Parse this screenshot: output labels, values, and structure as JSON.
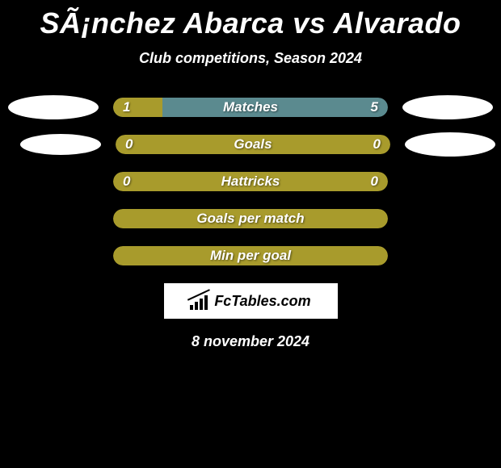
{
  "title": "SÃ¡nchez Abarca vs Alvarado",
  "subtitle": "Club competitions, Season 2024",
  "date": "8 november 2024",
  "logo_text": "FcTables.com",
  "colors": {
    "background": "#000000",
    "bar_fill": "#a89b2c",
    "bar_alt": "#5b8a8f",
    "ellipse": "#ffffff",
    "text": "#ffffff"
  },
  "rows": [
    {
      "label": "Matches",
      "left_value": "1",
      "right_value": "5",
      "left_pct": 18,
      "bg_color": "#5b8a8f",
      "fill_color": "#a89b2c",
      "show_left_ellipse": true,
      "show_right_ellipse": true,
      "left_ellipse_small": false
    },
    {
      "label": "Goals",
      "left_value": "0",
      "right_value": "0",
      "left_pct": 0,
      "bg_color": "#a89b2c",
      "fill_color": "#a89b2c",
      "show_left_ellipse": true,
      "show_right_ellipse": true,
      "left_ellipse_small": true
    },
    {
      "label": "Hattricks",
      "left_value": "0",
      "right_value": "0",
      "left_pct": 0,
      "bg_color": "#a89b2c",
      "fill_color": "#a89b2c",
      "show_left_ellipse": false,
      "show_right_ellipse": false,
      "left_ellipse_small": false
    },
    {
      "label": "Goals per match",
      "left_value": "",
      "right_value": "",
      "left_pct": 0,
      "bg_color": "#a89b2c",
      "fill_color": "#a89b2c",
      "show_left_ellipse": false,
      "show_right_ellipse": false,
      "left_ellipse_small": false
    },
    {
      "label": "Min per goal",
      "left_value": "",
      "right_value": "",
      "left_pct": 0,
      "bg_color": "#a89b2c",
      "fill_color": "#a89b2c",
      "show_left_ellipse": false,
      "show_right_ellipse": false,
      "left_ellipse_small": false
    }
  ]
}
